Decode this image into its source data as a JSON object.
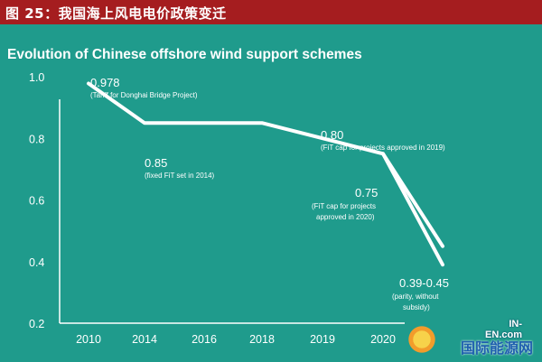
{
  "header": {
    "title": "图 25：我国海上风电电价政策变迁"
  },
  "chart_data": {
    "type": "line",
    "title": "Evolution of Chinese offshore wind support schemes",
    "categories": [
      "2010",
      "2014",
      "2016",
      "2018",
      "2019",
      "2020",
      ""
    ],
    "y_ticks": [
      "0.2",
      "0.4",
      "0.6",
      "0.8",
      "1.0"
    ],
    "ylim": [
      0.2,
      1.0
    ],
    "grid": false,
    "series": [
      {
        "values": [
          0.978,
          0.85,
          0.85,
          0.85,
          0.8,
          0.75,
          0.45
        ]
      },
      {
        "values": [
          null,
          null,
          null,
          null,
          null,
          0.75,
          0.39
        ]
      }
    ],
    "annotations": [
      {
        "value": "0.978",
        "note": "(Tariff for Donghai Bridge Project)"
      },
      {
        "value": "0.85",
        "note": "(fixed FiT set in 2014)"
      },
      {
        "value": "0.80",
        "note": "(FiT cap for projects approved in 2019)"
      },
      {
        "value": "0.75",
        "note": "(FiT cap for projects approved in 2020)"
      },
      {
        "value": "0.39-0.45",
        "note": "(parity, without subsidy)"
      }
    ],
    "colors": {
      "background": "#1f9b8c",
      "line": "#ffffff",
      "axis": "#ffffff",
      "header": "#a51d1f"
    }
  },
  "watermark": {
    "top": "IN-EN.com",
    "main": "国际能源网"
  }
}
